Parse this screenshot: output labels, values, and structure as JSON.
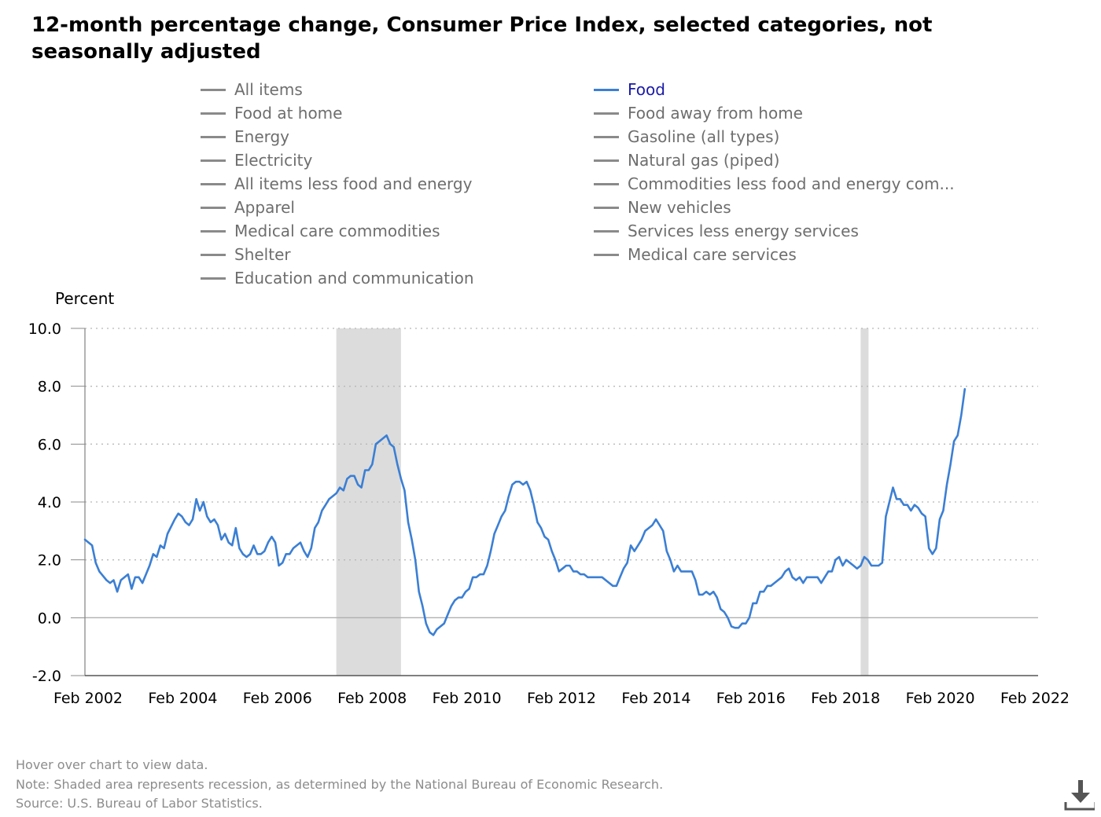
{
  "title": "12-month percentage change, Consumer Price Index, selected categories, not seasonally adjusted",
  "legend": {
    "left": [
      "All items",
      "Food at home",
      "Energy",
      "Electricity",
      "All items less food and energy",
      "Apparel",
      "Medical care commodities",
      "Shelter",
      "Education and communication"
    ],
    "right": [
      "Food",
      "Food away from home",
      "Gasoline (all types)",
      "Natural gas (piped)",
      "Commodities less food and energy com...",
      "New vehicles",
      "Services less energy services",
      "Medical care services"
    ],
    "active": "Food"
  },
  "footnotes": {
    "hover": "Hover over chart to view data.",
    "note": "Note: Shaded area represents recession, as determined by the National Bureau of Economic Research.",
    "source": "Source: U.S. Bureau of Labor Statistics."
  },
  "icons": {
    "download": "download-icon"
  },
  "colors": {
    "series": "#3b7fd4",
    "recession": "#dcdcdc",
    "active_legend_text": "#1a1aa6"
  },
  "chart_data": {
    "type": "line",
    "ylabel": "Percent",
    "ylim": [
      -2.0,
      10.0
    ],
    "yticks": [
      "10.0",
      "8.0",
      "6.0",
      "4.0",
      "2.0",
      "0.0",
      "-2.0"
    ],
    "xticks": [
      "Feb 2002",
      "Feb 2004",
      "Feb 2006",
      "Feb 2008",
      "Feb 2010",
      "Feb 2012",
      "Feb 2014",
      "Feb 2016",
      "Feb 2018",
      "Feb 2020",
      "Feb 2022"
    ],
    "x_range": [
      "2002-02",
      "2022-02"
    ],
    "grid": "horizontal dotted",
    "recessions": [
      {
        "start": "2007-12",
        "end": "2009-06"
      },
      {
        "start": "2020-02",
        "end": "2020-04"
      }
    ],
    "series": [
      {
        "name": "Food",
        "points": [
          [
            "2002-02",
            2.7
          ],
          [
            "2002-04",
            2.5
          ],
          [
            "2002-05",
            1.9
          ],
          [
            "2002-06",
            1.6
          ],
          [
            "2002-08",
            1.3
          ],
          [
            "2002-09",
            1.2
          ],
          [
            "2002-10",
            1.3
          ],
          [
            "2002-11",
            0.9
          ],
          [
            "2002-12",
            1.3
          ],
          [
            "2003-02",
            1.5
          ],
          [
            "2003-03",
            1.0
          ],
          [
            "2003-04",
            1.4
          ],
          [
            "2003-05",
            1.4
          ],
          [
            "2003-06",
            1.2
          ],
          [
            "2003-08",
            1.8
          ],
          [
            "2003-09",
            2.2
          ],
          [
            "2003-10",
            2.1
          ],
          [
            "2003-11",
            2.5
          ],
          [
            "2003-12",
            2.4
          ],
          [
            "2004-01",
            2.9
          ],
          [
            "2004-03",
            3.4
          ],
          [
            "2004-04",
            3.6
          ],
          [
            "2004-05",
            3.5
          ],
          [
            "2004-06",
            3.3
          ],
          [
            "2004-07",
            3.2
          ],
          [
            "2004-08",
            3.4
          ],
          [
            "2004-09",
            4.1
          ],
          [
            "2004-10",
            3.7
          ],
          [
            "2004-11",
            4.0
          ],
          [
            "2004-12",
            3.5
          ],
          [
            "2005-01",
            3.3
          ],
          [
            "2005-02",
            3.4
          ],
          [
            "2005-03",
            3.2
          ],
          [
            "2005-04",
            2.7
          ],
          [
            "2005-05",
            2.9
          ],
          [
            "2005-06",
            2.6
          ],
          [
            "2005-07",
            2.5
          ],
          [
            "2005-08",
            3.1
          ],
          [
            "2005-09",
            2.4
          ],
          [
            "2005-10",
            2.2
          ],
          [
            "2005-11",
            2.1
          ],
          [
            "2005-12",
            2.2
          ],
          [
            "2006-01",
            2.5
          ],
          [
            "2006-02",
            2.2
          ],
          [
            "2006-03",
            2.2
          ],
          [
            "2006-04",
            2.3
          ],
          [
            "2006-05",
            2.6
          ],
          [
            "2006-06",
            2.8
          ],
          [
            "2006-07",
            2.6
          ],
          [
            "2006-08",
            1.8
          ],
          [
            "2006-09",
            1.9
          ],
          [
            "2006-10",
            2.2
          ],
          [
            "2006-11",
            2.2
          ],
          [
            "2006-12",
            2.4
          ],
          [
            "2007-02",
            2.6
          ],
          [
            "2007-03",
            2.3
          ],
          [
            "2007-04",
            2.1
          ],
          [
            "2007-05",
            2.4
          ],
          [
            "2007-06",
            3.1
          ],
          [
            "2007-07",
            3.3
          ],
          [
            "2007-08",
            3.7
          ],
          [
            "2007-09",
            3.9
          ],
          [
            "2007-10",
            4.1
          ],
          [
            "2007-11",
            4.2
          ],
          [
            "2007-12",
            4.3
          ],
          [
            "2008-01",
            4.5
          ],
          [
            "2008-02",
            4.4
          ],
          [
            "2008-03",
            4.8
          ],
          [
            "2008-04",
            4.9
          ],
          [
            "2008-05",
            4.9
          ],
          [
            "2008-06",
            4.6
          ],
          [
            "2008-07",
            4.5
          ],
          [
            "2008-08",
            5.1
          ],
          [
            "2008-09",
            5.1
          ],
          [
            "2008-10",
            5.3
          ],
          [
            "2008-11",
            6.0
          ],
          [
            "2008-12",
            6.1
          ],
          [
            "2009-02",
            6.3
          ],
          [
            "2009-03",
            6.0
          ],
          [
            "2009-04",
            5.9
          ],
          [
            "2009-05",
            5.3
          ],
          [
            "2009-06",
            4.8
          ],
          [
            "2009-07",
            4.4
          ],
          [
            "2009-08",
            3.3
          ],
          [
            "2009-09",
            2.7
          ],
          [
            "2009-10",
            2.0
          ],
          [
            "2009-11",
            0.9
          ],
          [
            "2009-12",
            0.4
          ],
          [
            "2010-01",
            -0.2
          ],
          [
            "2010-02",
            -0.5
          ],
          [
            "2010-03",
            -0.6
          ],
          [
            "2010-04",
            -0.4
          ],
          [
            "2010-05",
            -0.3
          ],
          [
            "2010-06",
            -0.2
          ],
          [
            "2010-07",
            0.1
          ],
          [
            "2010-08",
            0.4
          ],
          [
            "2010-09",
            0.6
          ],
          [
            "2010-10",
            0.7
          ],
          [
            "2010-11",
            0.7
          ],
          [
            "2010-12",
            0.9
          ],
          [
            "2011-01",
            1.0
          ],
          [
            "2011-02",
            1.4
          ],
          [
            "2011-03",
            1.4
          ],
          [
            "2011-04",
            1.5
          ],
          [
            "2011-05",
            1.5
          ],
          [
            "2011-06",
            1.8
          ],
          [
            "2011-07",
            2.3
          ],
          [
            "2011-08",
            2.9
          ],
          [
            "2011-09",
            3.2
          ],
          [
            "2011-10",
            3.5
          ],
          [
            "2011-11",
            3.7
          ],
          [
            "2011-12",
            4.2
          ],
          [
            "2012-01",
            4.6
          ],
          [
            "2012-02",
            4.7
          ],
          [
            "2012-03",
            4.7
          ],
          [
            "2012-04",
            4.6
          ],
          [
            "2012-05",
            4.7
          ],
          [
            "2012-06",
            4.4
          ],
          [
            "2012-07",
            3.9
          ],
          [
            "2012-08",
            3.3
          ],
          [
            "2012-09",
            3.1
          ],
          [
            "2012-10",
            2.8
          ],
          [
            "2012-11",
            2.7
          ],
          [
            "2012-12",
            2.3
          ],
          [
            "2013-01",
            2.0
          ],
          [
            "2013-02",
            1.6
          ],
          [
            "2013-03",
            1.7
          ],
          [
            "2013-04",
            1.8
          ],
          [
            "2013-05",
            1.8
          ],
          [
            "2013-06",
            1.6
          ],
          [
            "2013-07",
            1.6
          ],
          [
            "2013-08",
            1.5
          ],
          [
            "2013-09",
            1.5
          ],
          [
            "2013-10",
            1.4
          ],
          [
            "2013-11",
            1.4
          ],
          [
            "2014-01",
            1.4
          ],
          [
            "2014-02",
            1.4
          ],
          [
            "2014-04",
            1.2
          ],
          [
            "2014-05",
            1.1
          ],
          [
            "2014-06",
            1.1
          ],
          [
            "2014-07",
            1.4
          ],
          [
            "2014-08",
            1.7
          ],
          [
            "2014-09",
            1.9
          ],
          [
            "2014-10",
            2.5
          ],
          [
            "2014-11",
            2.3
          ],
          [
            "2014-12",
            2.5
          ],
          [
            "2015-01",
            2.7
          ],
          [
            "2015-02",
            3.0
          ],
          [
            "2015-03",
            3.1
          ],
          [
            "2015-04",
            3.2
          ],
          [
            "2015-05",
            3.4
          ],
          [
            "2015-06",
            3.2
          ],
          [
            "2015-07",
            3.0
          ],
          [
            "2015-08",
            2.3
          ],
          [
            "2015-09",
            2.0
          ],
          [
            "2015-10",
            1.6
          ],
          [
            "2015-11",
            1.8
          ],
          [
            "2015-12",
            1.6
          ],
          [
            "2016-01",
            1.6
          ],
          [
            "2016-02",
            1.6
          ],
          [
            "2016-03",
            1.6
          ],
          [
            "2016-04",
            1.3
          ],
          [
            "2016-05",
            0.8
          ],
          [
            "2016-06",
            0.8
          ],
          [
            "2016-07",
            0.9
          ],
          [
            "2016-08",
            0.8
          ],
          [
            "2016-09",
            0.9
          ],
          [
            "2016-10",
            0.7
          ],
          [
            "2016-11",
            0.3
          ],
          [
            "2016-12",
            0.2
          ],
          [
            "2017-01",
            0.0
          ],
          [
            "2017-02",
            -0.3
          ],
          [
            "2017-03",
            -0.35
          ],
          [
            "2017-04",
            -0.35
          ],
          [
            "2017-05",
            -0.2
          ],
          [
            "2017-06",
            -0.2
          ],
          [
            "2017-07",
            0.0
          ],
          [
            "2017-08",
            0.5
          ],
          [
            "2017-09",
            0.5
          ],
          [
            "2017-10",
            0.9
          ],
          [
            "2017-11",
            0.9
          ],
          [
            "2017-12",
            1.1
          ],
          [
            "2018-01",
            1.1
          ],
          [
            "2018-02",
            1.2
          ],
          [
            "2018-04",
            1.4
          ],
          [
            "2018-05",
            1.6
          ],
          [
            "2018-06",
            1.7
          ],
          [
            "2018-07",
            1.4
          ],
          [
            "2018-08",
            1.3
          ],
          [
            "2018-09",
            1.4
          ],
          [
            "2018-10",
            1.2
          ],
          [
            "2018-11",
            1.4
          ],
          [
            "2018-12",
            1.4
          ],
          [
            "2019-02",
            1.4
          ],
          [
            "2019-03",
            1.2
          ],
          [
            "2019-05",
            1.6
          ],
          [
            "2019-06",
            1.6
          ],
          [
            "2019-07",
            2.0
          ],
          [
            "2019-08",
            2.1
          ],
          [
            "2019-09",
            1.8
          ],
          [
            "2019-10",
            2.0
          ],
          [
            "2019-12",
            1.8
          ],
          [
            "2020-01",
            1.7
          ],
          [
            "2020-02",
            1.8
          ],
          [
            "2020-03",
            2.1
          ],
          [
            "2020-04",
            2.0
          ],
          [
            "2020-05",
            1.8
          ],
          [
            "2020-06",
            1.8
          ],
          [
            "2020-07",
            1.8
          ],
          [
            "2020-08",
            1.9
          ],
          [
            "2020-09",
            3.5
          ],
          [
            "2020-11",
            4.5
          ],
          [
            "2020-12",
            4.1
          ],
          [
            "2021-01",
            4.1
          ],
          [
            "2021-02",
            3.9
          ],
          [
            "2021-03",
            3.9
          ],
          [
            "2021-04",
            3.7
          ],
          [
            "2021-05",
            3.9
          ],
          [
            "2021-06",
            3.8
          ],
          [
            "2021-07",
            3.6
          ],
          [
            "2021-08",
            3.5
          ],
          [
            "2021-09",
            2.4
          ],
          [
            "2021-10",
            2.2
          ],
          [
            "2021-11",
            2.4
          ],
          [
            "2021-12",
            3.4
          ],
          [
            "2022-01",
            3.7
          ],
          [
            "2022-02",
            4.6
          ],
          [
            "2022-03",
            5.3
          ],
          [
            "2022-04",
            6.1
          ],
          [
            "2022-05",
            6.3
          ],
          [
            "2022-06",
            7.0
          ],
          [
            "2022-07",
            7.9
          ]
        ]
      }
    ]
  }
}
